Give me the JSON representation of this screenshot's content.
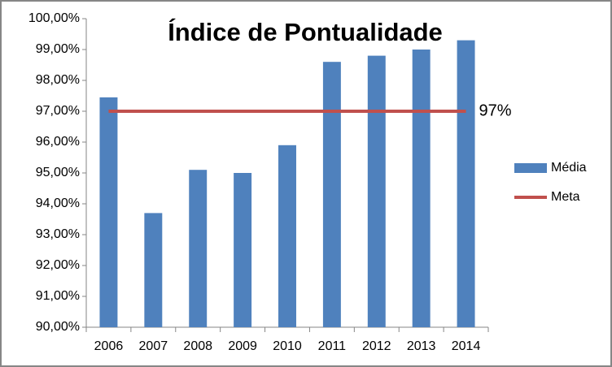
{
  "chart_data": {
    "type": "bar",
    "title": "Índice de Pontualidade",
    "categories": [
      "2006",
      "2007",
      "2008",
      "2009",
      "2010",
      "2011",
      "2012",
      "2013",
      "2014"
    ],
    "series": [
      {
        "name": "Média",
        "color": "#4f81bd",
        "type": "bar",
        "values": [
          97.45,
          93.7,
          95.1,
          95.0,
          95.9,
          98.6,
          98.8,
          99.0,
          99.3
        ]
      },
      {
        "name": "Meta",
        "color": "#c0504d",
        "type": "line",
        "values": [
          97,
          97,
          97,
          97,
          97,
          97,
          97,
          97,
          97
        ],
        "value_labels": [
          null,
          null,
          null,
          null,
          null,
          null,
          null,
          null,
          "97%"
        ]
      }
    ],
    "ylim": [
      90,
      100
    ],
    "yticks": [
      {
        "value": 90,
        "label": "90,00%"
      },
      {
        "value": 91,
        "label": "91,00%"
      },
      {
        "value": 92,
        "label": "92,00%"
      },
      {
        "value": 93,
        "label": "93,00%"
      },
      {
        "value": 94,
        "label": "94,00%"
      },
      {
        "value": 95,
        "label": "95,00%"
      },
      {
        "value": 96,
        "label": "96,00%"
      },
      {
        "value": 97,
        "label": "97,00%"
      },
      {
        "value": 98,
        "label": "98,00%"
      },
      {
        "value": 99,
        "label": "99,00%"
      },
      {
        "value": 100,
        "label": "100,00%"
      }
    ],
    "legend": "right"
  }
}
